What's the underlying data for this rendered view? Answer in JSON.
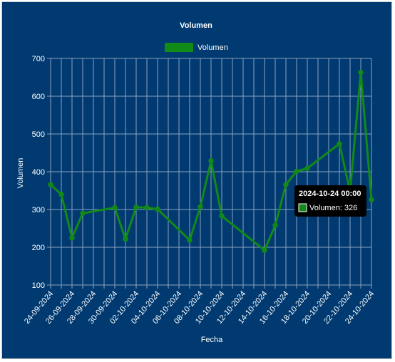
{
  "chart_data": {
    "type": "line",
    "title": "Volumen",
    "xlabel": "Fecha",
    "ylabel": "Volumen",
    "ylim": [
      100,
      700
    ],
    "yticks": [
      "100",
      "200",
      "300",
      "400",
      "500",
      "600",
      "700"
    ],
    "x_start": "2024-09-24",
    "x_end": "2024-10-24",
    "xtick_labels": [
      "24-09-2024",
      "26-09-2024",
      "28-09-2024",
      "30-09-2024",
      "02-10-2024",
      "04-10-2024",
      "06-10-2024",
      "08-10-2024",
      "10-10-2024",
      "12-10-2024",
      "14-10-2024",
      "16-10-2024",
      "18-10-2024",
      "20-10-2024",
      "22-10-2024",
      "24-10-2024"
    ],
    "grid": true,
    "legend": "top-center",
    "series": [
      {
        "name": "Volumen",
        "color": "#118a18",
        "points": [
          {
            "x": "2024-09-24",
            "y": 366
          },
          {
            "x": "2024-09-25",
            "y": 340
          },
          {
            "x": "2024-09-26",
            "y": 225
          },
          {
            "x": "2024-09-27",
            "y": 290
          },
          {
            "x": "2024-09-30",
            "y": 305
          },
          {
            "x": "2024-10-01",
            "y": 222
          },
          {
            "x": "2024-10-02",
            "y": 306
          },
          {
            "x": "2024-10-03",
            "y": 305
          },
          {
            "x": "2024-10-04",
            "y": 301
          },
          {
            "x": "2024-10-07",
            "y": 219
          },
          {
            "x": "2024-10-08",
            "y": 307
          },
          {
            "x": "2024-10-09",
            "y": 429
          },
          {
            "x": "2024-10-10",
            "y": 283
          },
          {
            "x": "2024-10-14",
            "y": 192
          },
          {
            "x": "2024-10-15",
            "y": 258
          },
          {
            "x": "2024-10-16",
            "y": 366
          },
          {
            "x": "2024-10-17",
            "y": 401
          },
          {
            "x": "2024-10-18",
            "y": 409
          },
          {
            "x": "2024-10-21",
            "y": 474
          },
          {
            "x": "2024-10-22",
            "y": 348
          },
          {
            "x": "2024-10-23",
            "y": 663
          },
          {
            "x": "2024-10-24",
            "y": 326
          }
        ]
      }
    ]
  },
  "tooltip": {
    "title": "2024-10-24 00:00",
    "label": "Volumen: 326"
  },
  "colors": {
    "background": "#003a70",
    "grid": "#8ca3bf",
    "line": "#118a18",
    "tooltip_bg": "#000000"
  }
}
